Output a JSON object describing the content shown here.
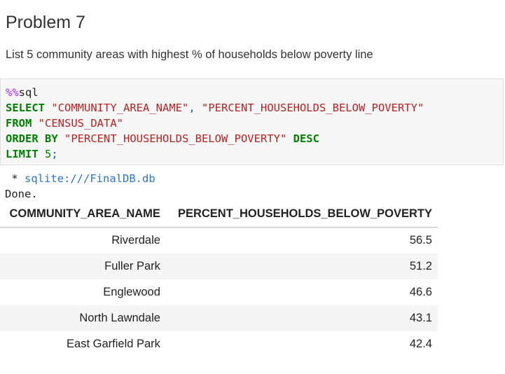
{
  "heading": {
    "title": "Problem 7",
    "text": "List 5 community areas with highest % of households below poverty line"
  },
  "code": [
    [
      "%%",
      "sql"
    ],
    [
      "SELECT",
      "\"COMMUNITY_AREA_NAME\"",
      ",",
      "\"PERCENT_HOUSEHOLDS_BELOW_POVERTY\""
    ],
    [
      "FROM",
      "\"CENSUS_DATA\""
    ],
    [
      "ORDER BY",
      "\"PERCENT_HOUSEHOLDS_BELOW_POVERTY\"",
      "DESC"
    ],
    [
      "LIMIT",
      "5",
      ";"
    ]
  ],
  "output": {
    "marker": "*",
    "connection": "sqlite:///FinalDB.db",
    "status": "Done."
  },
  "table": {
    "columns": [
      "COMMUNITY_AREA_NAME",
      "PERCENT_HOUSEHOLDS_BELOW_POVERTY"
    ],
    "rows": [
      [
        "Riverdale",
        56.5
      ],
      [
        "Fuller Park",
        51.2
      ],
      [
        "Englewood",
        46.6
      ],
      [
        "North Lawndale",
        43.1
      ],
      [
        "East Garfield Park",
        42.4
      ]
    ]
  }
}
